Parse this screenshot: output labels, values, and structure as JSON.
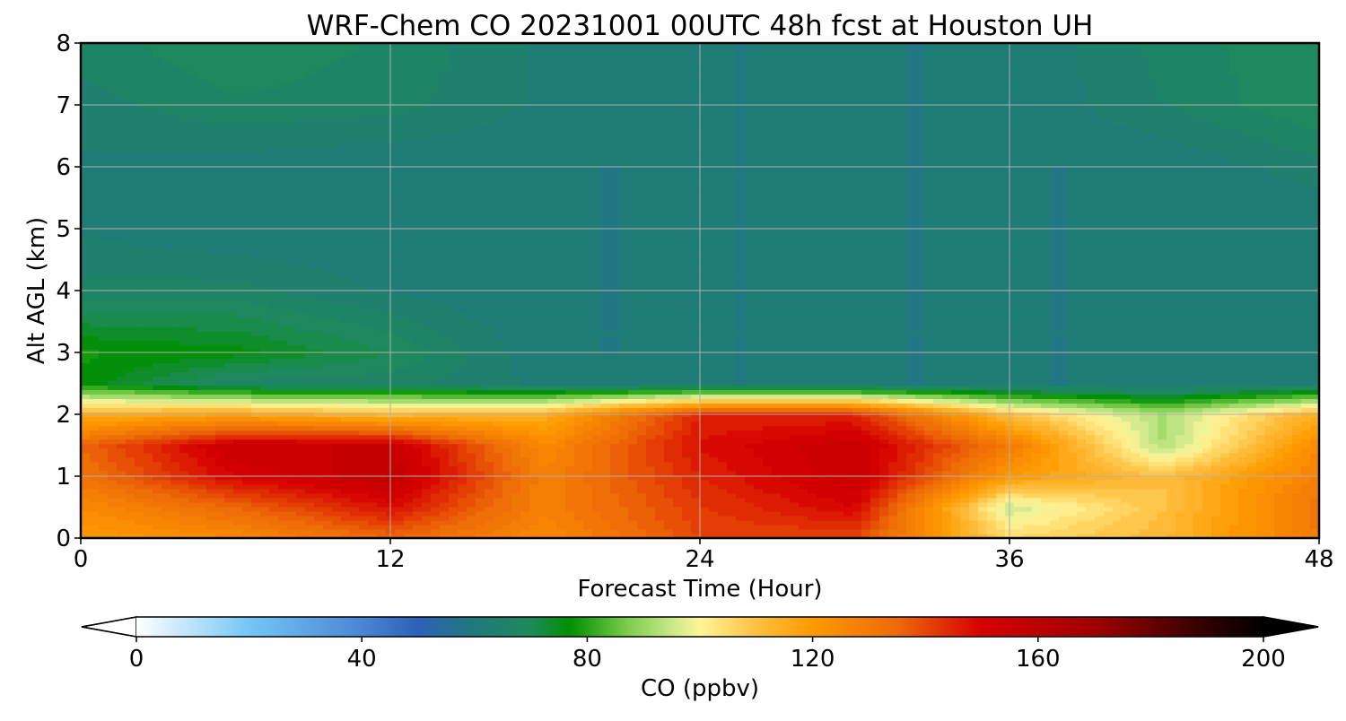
{
  "chart_data": {
    "type": "heatmap",
    "title": "WRF-Chem CO  20231001 00UTC 48h fcst at Houston UH",
    "xlabel": "Forecast Time (Hour)",
    "ylabel": "Alt AGL (km)",
    "xlim": [
      0,
      48
    ],
    "ylim": [
      0,
      8
    ],
    "x_ticks": [
      "0",
      "12",
      "24",
      "36",
      "48"
    ],
    "y_ticks": [
      "0",
      "1",
      "2",
      "3",
      "4",
      "5",
      "6",
      "7",
      "8"
    ],
    "grid": true,
    "x": [
      0,
      6,
      12,
      18,
      24,
      30,
      36,
      42,
      48
    ],
    "y": [
      0,
      0.5,
      1,
      1.5,
      2,
      2.5,
      3,
      4,
      5,
      6,
      7,
      8
    ],
    "z": [
      [
        120,
        125,
        135,
        125,
        140,
        140,
        105,
        112,
        130
      ],
      [
        125,
        135,
        148,
        128,
        142,
        150,
        95,
        110,
        132
      ],
      [
        132,
        150,
        158,
        128,
        145,
        155,
        120,
        110,
        128
      ],
      [
        135,
        155,
        155,
        125,
        148,
        155,
        130,
        92,
        125
      ],
      [
        115,
        118,
        112,
        115,
        145,
        145,
        110,
        92,
        115
      ],
      [
        77,
        66,
        66,
        62,
        60,
        60,
        60,
        60,
        62
      ],
      [
        78,
        76,
        70,
        60,
        60,
        60,
        60,
        60,
        60
      ],
      [
        66,
        66,
        62,
        60,
        60,
        60,
        60,
        60,
        60
      ],
      [
        62,
        60,
        60,
        60,
        60,
        60,
        60,
        60,
        60
      ],
      [
        62,
        61,
        60,
        60,
        60,
        60,
        60,
        60,
        64
      ],
      [
        64,
        67,
        66,
        62,
        60,
        60,
        60,
        65,
        70
      ],
      [
        66,
        70,
        67,
        62,
        60,
        60,
        60,
        66,
        70
      ]
    ],
    "colorbar": {
      "label": "CO  (ppbv)",
      "min": 0,
      "max": 200,
      "ticks": [
        "0",
        "40",
        "80",
        "120",
        "160",
        "200"
      ],
      "extend": "both",
      "color_stops": [
        {
          "v": 0,
          "c": "#ffffff"
        },
        {
          "v": 20,
          "c": "#74c6f5"
        },
        {
          "v": 40,
          "c": "#4a86d4"
        },
        {
          "v": 50,
          "c": "#2e60b8"
        },
        {
          "v": 60,
          "c": "#1f7a7a"
        },
        {
          "v": 70,
          "c": "#1e8a5a"
        },
        {
          "v": 77,
          "c": "#009000"
        },
        {
          "v": 87,
          "c": "#7acc4a"
        },
        {
          "v": 95,
          "c": "#c8e88a"
        },
        {
          "v": 100,
          "c": "#fff598"
        },
        {
          "v": 110,
          "c": "#ffc040"
        },
        {
          "v": 120,
          "c": "#ff9a00"
        },
        {
          "v": 135,
          "c": "#ee6a08"
        },
        {
          "v": 150,
          "c": "#d60000"
        },
        {
          "v": 170,
          "c": "#a00000"
        },
        {
          "v": 190,
          "c": "#300000"
        },
        {
          "v": 200,
          "c": "#000000"
        }
      ]
    }
  }
}
